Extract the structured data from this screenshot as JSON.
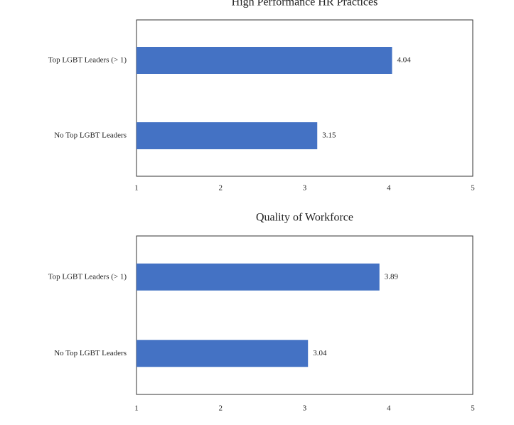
{
  "chart_data": [
    {
      "type": "bar",
      "orientation": "horizontal",
      "title": "High Performance HR Practices",
      "categories": [
        "Top LGBT Leaders (> 1)",
        "No Top LGBT Leaders"
      ],
      "values": [
        4.04,
        3.15
      ],
      "color": "#4472c4",
      "xlim": [
        1,
        5
      ],
      "xticks": [
        1,
        2,
        3,
        4,
        5
      ]
    },
    {
      "type": "bar",
      "orientation": "horizontal",
      "title": "Quality of Workforce",
      "categories": [
        "Top LGBT Leaders (> 1)",
        "No Top LGBT Leaders"
      ],
      "values": [
        3.89,
        3.04
      ],
      "color": "#4472c4",
      "xlim": [
        1,
        5
      ],
      "xticks": [
        1,
        2,
        3,
        4,
        5
      ]
    }
  ]
}
